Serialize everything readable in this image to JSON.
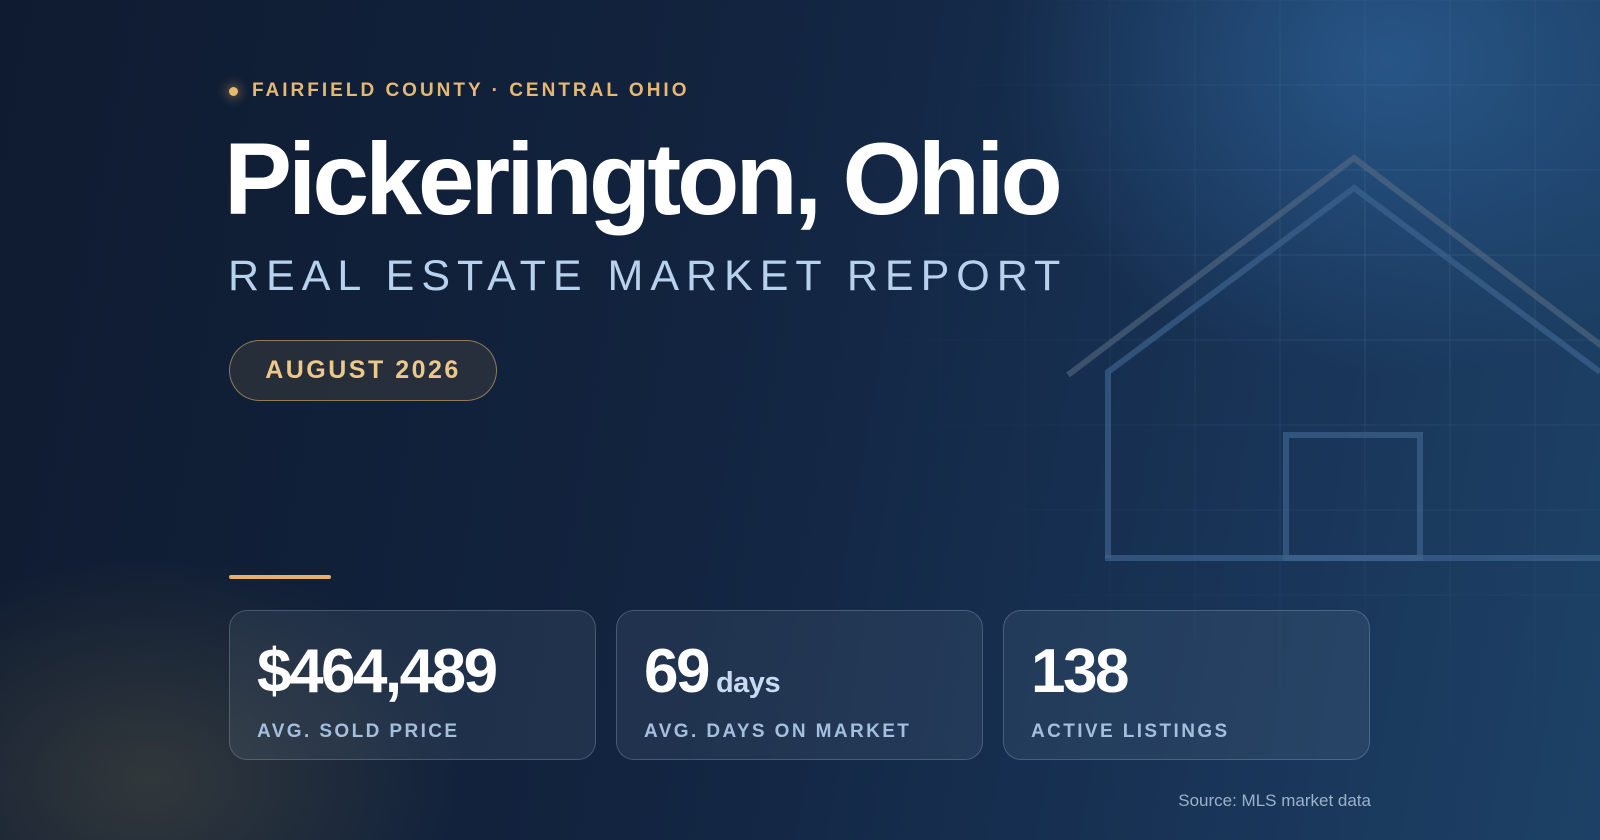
{
  "header": {
    "eyebrow": "FAIRFIELD COUNTY · CENTRAL OHIO",
    "title": "Pickerington, Ohio",
    "subtitle": "REAL ESTATE MARKET REPORT",
    "date_badge": "AUGUST 2026"
  },
  "stats": [
    {
      "value": "$464,489",
      "unit": "",
      "label": "AVG. SOLD PRICE"
    },
    {
      "value": "69",
      "unit": "days",
      "label": "AVG. DAYS ON MARKET"
    },
    {
      "value": "138",
      "unit": "",
      "label": "ACTIVE LISTINGS"
    }
  ],
  "footer": {
    "source": "Source: MLS market data"
  },
  "colors": {
    "background": "#132744",
    "accent_gold": "#e6b872",
    "title": "#ffffff",
    "subtitle": "#b8d2ee",
    "label": "#a4bedd"
  },
  "icons": {
    "eyebrow": "dot-icon",
    "illustration": "house-outline-icon"
  }
}
